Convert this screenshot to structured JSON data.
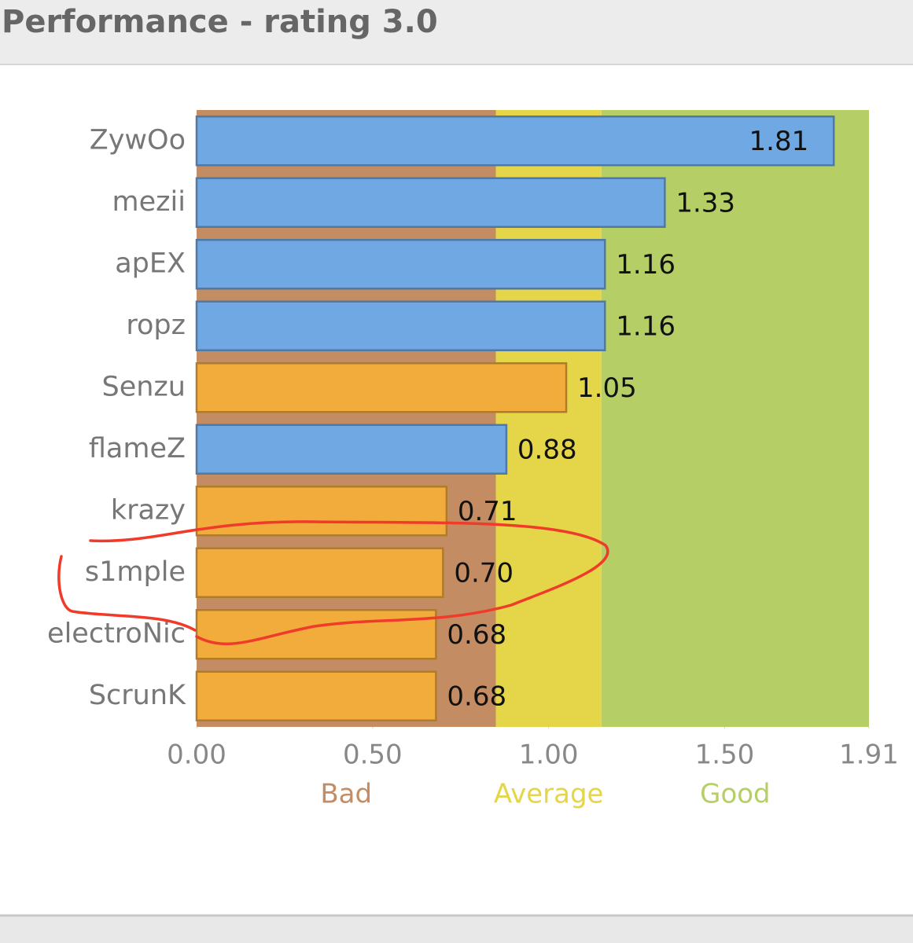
{
  "chart_data": {
    "type": "bar",
    "orientation": "horizontal",
    "title": "Performance - rating 3.0",
    "categories": [
      "ZywOo",
      "mezii",
      "apEX",
      "ropz",
      "Senzu",
      "flameZ",
      "krazy",
      "s1mple",
      "electroNic",
      "ScrunK"
    ],
    "values": [
      1.81,
      1.33,
      1.16,
      1.16,
      1.05,
      0.88,
      0.71,
      0.7,
      0.68,
      0.68
    ],
    "value_labels": [
      "1.81",
      "1.33",
      "1.16",
      "1.16",
      "1.05",
      "0.88",
      "0.71",
      "0.70",
      "0.68",
      "0.68"
    ],
    "colors": [
      "#6fa8e2",
      "#6fa8e2",
      "#6fa8e2",
      "#6fa8e2",
      "#f2ac3c",
      "#6fa8e2",
      "#f2ac3c",
      "#f2ac3c",
      "#f2ac3c",
      "#f2ac3c"
    ],
    "xlim": [
      0,
      1.91
    ],
    "xticks": [
      {
        "value": 0,
        "label": "0.00"
      },
      {
        "value": 0.5,
        "label": "0.50"
      },
      {
        "value": 1,
        "label": "1.00"
      },
      {
        "value": 1.5,
        "label": "1.50"
      },
      1.91
    ],
    "bands": [
      {
        "name": "Bad",
        "from": 0,
        "to": 0.85,
        "color": "#c48c62",
        "label_color": "#c48c62"
      },
      {
        "name": "Average",
        "from": 0.85,
        "to": 1.15,
        "color": "#e5d548",
        "label_color": "#e5d548"
      },
      {
        "name": "Good",
        "from": 1.15,
        "to": 1.91,
        "color": "#b5cf66",
        "label_color": "#b5cf66"
      }
    ]
  }
}
